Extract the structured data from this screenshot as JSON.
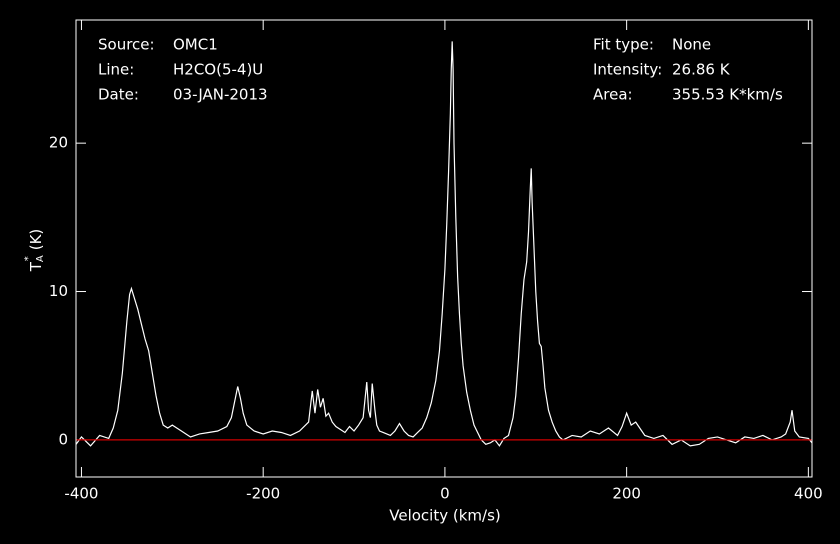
{
  "chart_data": {
    "type": "line",
    "xlabel": "Velocity (km/s)",
    "ylabel": {
      "main": "T",
      "sub": "A",
      "sup": "*",
      "rest": "(K)"
    },
    "annotations_left": [
      [
        "Source:",
        "OMC1"
      ],
      [
        "Line:",
        "H2CO(5-4)U"
      ],
      [
        "Date:",
        "03-JAN-2013"
      ]
    ],
    "annotations_right": [
      [
        "Fit type:",
        "None"
      ],
      [
        "Intensity:",
        "26.86 K"
      ],
      [
        "Area:",
        "355.53 K*km/s"
      ]
    ],
    "xlim": [
      -406,
      404
    ],
    "ylim": [
      -2.5,
      28.3
    ],
    "xticks": [
      -400,
      -200,
      0,
      200,
      400
    ],
    "yticks": [
      0,
      10,
      20
    ],
    "baseline": 0,
    "baseline_color": "#d00000",
    "series": [
      {
        "color": "#ffffff",
        "x": [
          -406,
          -400,
          -390,
          -380,
          -370,
          -365,
          -360,
          -355,
          -350,
          -347,
          -345,
          -342,
          -338,
          -334,
          -330,
          -326,
          -322,
          -318,
          -314,
          -310,
          -305,
          -300,
          -290,
          -280,
          -270,
          -260,
          -250,
          -240,
          -235,
          -230,
          -228,
          -225,
          -222,
          -218,
          -210,
          -200,
          -190,
          -180,
          -170,
          -160,
          -150,
          -146,
          -143,
          -140,
          -137,
          -134,
          -131,
          -128,
          -124,
          -120,
          -115,
          -110,
          -105,
          -100,
          -95,
          -90,
          -86,
          -84,
          -82,
          -80,
          -77,
          -75,
          -72,
          -68,
          -64,
          -60,
          -55,
          -50,
          -45,
          -40,
          -35,
          -30,
          -25,
          -20,
          -15,
          -10,
          -6,
          -3,
          0,
          2,
          4,
          6,
          7,
          8,
          9,
          10,
          12,
          14,
          16,
          18,
          20,
          24,
          28,
          32,
          36,
          40,
          45,
          50,
          55,
          60,
          65,
          70,
          75,
          78,
          81,
          84,
          87,
          90,
          92,
          94,
          95,
          96,
          98,
          100,
          102,
          104,
          106,
          108,
          110,
          114,
          118,
          122,
          126,
          130,
          140,
          150,
          160,
          170,
          180,
          190,
          195,
          200,
          205,
          210,
          220,
          230,
          240,
          250,
          260,
          270,
          280,
          290,
          300,
          310,
          320,
          330,
          340,
          350,
          360,
          370,
          375,
          380,
          382,
          385,
          390,
          400,
          404
        ],
        "values": [
          -0.3,
          0.2,
          -0.4,
          0.3,
          0.1,
          0.8,
          2.0,
          4.5,
          8.0,
          9.8,
          10.2,
          9.6,
          8.8,
          7.8,
          6.8,
          6.0,
          4.5,
          3.0,
          1.8,
          1.0,
          0.8,
          1.0,
          0.6,
          0.2,
          0.4,
          0.5,
          0.6,
          0.9,
          1.5,
          3.0,
          3.6,
          2.8,
          1.8,
          1.0,
          0.6,
          0.4,
          0.6,
          0.5,
          0.3,
          0.6,
          1.2,
          3.3,
          1.8,
          3.4,
          2.2,
          2.8,
          1.6,
          1.8,
          1.2,
          0.9,
          0.7,
          0.5,
          0.9,
          0.6,
          1.0,
          1.5,
          3.9,
          2.0,
          1.5,
          3.8,
          2.0,
          1.0,
          0.6,
          0.5,
          0.4,
          0.3,
          0.6,
          1.1,
          0.6,
          0.3,
          0.2,
          0.5,
          0.8,
          1.5,
          2.5,
          4.0,
          6.0,
          8.5,
          11.5,
          14.5,
          18,
          22,
          25,
          26.86,
          25,
          20,
          15,
          11,
          8.5,
          6.5,
          5,
          3.2,
          2.0,
          1.0,
          0.5,
          0.0,
          -0.3,
          -0.2,
          0.0,
          -0.4,
          0.1,
          0.3,
          1.5,
          3.0,
          5.5,
          8.5,
          10.8,
          12.0,
          14,
          17,
          18.3,
          16,
          13,
          10,
          8,
          6.5,
          6.3,
          5,
          3.5,
          2.0,
          1.2,
          0.6,
          0.2,
          0.0,
          0.3,
          0.2,
          0.6,
          0.4,
          0.8,
          0.3,
          0.9,
          1.8,
          1.0,
          1.2,
          0.3,
          0.1,
          0.3,
          -0.3,
          0.0,
          -0.4,
          -0.3,
          0.1,
          0.2,
          0.0,
          -0.2,
          0.2,
          0.1,
          0.3,
          0.0,
          0.2,
          0.4,
          1.2,
          2.0,
          0.6,
          0.2,
          0.1,
          -0.2
        ]
      }
    ]
  }
}
